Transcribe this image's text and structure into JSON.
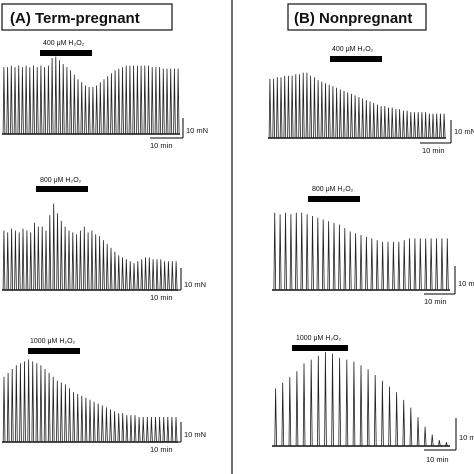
{
  "figure": {
    "panels": [
      {
        "id": "A",
        "title": "(A) Term-pregnant",
        "traces": [
          {
            "treatment": "400 μM H₂O₂",
            "scale_force": "10 mN",
            "scale_time": "10 min"
          },
          {
            "treatment": "800 μM H₂O₂",
            "scale_force": "10 mN",
            "scale_time": "10 min"
          },
          {
            "treatment": "1000 μM H₂O₂",
            "scale_force": "10 mN",
            "scale_time": "10 min"
          }
        ]
      },
      {
        "id": "B",
        "title": "(B) Nonpregnant",
        "traces": [
          {
            "treatment": "400 μM H₂O₂",
            "scale_force": "10 mN",
            "scale_time": "10 min"
          },
          {
            "treatment": "800 μM H₂O₂",
            "scale_force": "10 mN",
            "scale_time": "10 min"
          },
          {
            "treatment": "1000 μM H₂O₂",
            "scale_force": "10 mN",
            "scale_time": "10 min"
          }
        ]
      }
    ]
  },
  "chart_data": {
    "type": "line",
    "description_units": "contraction force traces (relative amplitude 0-1 of 10 mN scale multiples)",
    "series": [
      {
        "panel": "A",
        "treatment": "400 μM H₂O₂",
        "amplitudes": [
          0.88,
          0.88,
          0.9,
          0.88,
          0.9,
          0.88,
          0.9,
          0.88,
          0.9,
          0.88,
          0.9,
          0.88,
          0.9,
          1.0,
          1.02,
          0.97,
          0.92,
          0.88,
          0.84,
          0.78,
          0.72,
          0.68,
          0.64,
          0.62,
          0.62,
          0.64,
          0.68,
          0.72,
          0.76,
          0.8,
          0.84,
          0.86,
          0.88,
          0.9,
          0.9,
          0.9,
          0.9,
          0.9,
          0.9,
          0.9,
          0.88,
          0.88,
          0.88,
          0.86,
          0.86,
          0.86,
          0.86,
          0.86
        ]
      },
      {
        "panel": "A",
        "treatment": "800 μM H₂O₂",
        "amplitudes": [
          0.62,
          0.6,
          0.64,
          0.62,
          0.6,
          0.64,
          0.62,
          0.6,
          0.7,
          0.66,
          0.66,
          0.62,
          0.78,
          0.9,
          0.8,
          0.72,
          0.66,
          0.62,
          0.6,
          0.58,
          0.62,
          0.66,
          0.6,
          0.62,
          0.58,
          0.56,
          0.52,
          0.48,
          0.44,
          0.4,
          0.36,
          0.34,
          0.32,
          0.3,
          0.28,
          0.3,
          0.32,
          0.34,
          0.34,
          0.32,
          0.32,
          0.32,
          0.3,
          0.3,
          0.3,
          0.3
        ]
      },
      {
        "panel": "A",
        "treatment": "1000 μM H₂O₂",
        "amplitudes": [
          0.68,
          0.72,
          0.76,
          0.8,
          0.82,
          0.84,
          0.86,
          0.84,
          0.82,
          0.8,
          0.76,
          0.72,
          0.68,
          0.64,
          0.62,
          0.6,
          0.56,
          0.52,
          0.5,
          0.48,
          0.46,
          0.44,
          0.42,
          0.4,
          0.38,
          0.36,
          0.34,
          0.32,
          0.3,
          0.3,
          0.28,
          0.28,
          0.28,
          0.26,
          0.26,
          0.26,
          0.26,
          0.26,
          0.26,
          0.26,
          0.26,
          0.26,
          0.26
        ]
      },
      {
        "panel": "B",
        "treatment": "400 μM H₂O₂",
        "amplitudes": [
          0.78,
          0.78,
          0.8,
          0.8,
          0.82,
          0.82,
          0.82,
          0.84,
          0.84,
          0.86,
          0.86,
          0.82,
          0.8,
          0.76,
          0.74,
          0.72,
          0.7,
          0.68,
          0.66,
          0.64,
          0.62,
          0.6,
          0.58,
          0.56,
          0.54,
          0.52,
          0.5,
          0.48,
          0.46,
          0.44,
          0.42,
          0.42,
          0.4,
          0.4,
          0.38,
          0.38,
          0.36,
          0.36,
          0.34,
          0.34,
          0.34,
          0.34,
          0.34,
          0.32,
          0.32,
          0.32,
          0.32,
          0.32
        ]
      },
      {
        "panel": "B",
        "treatment": "800 μM H₂O₂",
        "amplitudes": [
          0.9,
          0.88,
          0.9,
          0.88,
          0.9,
          0.9,
          0.88,
          0.86,
          0.84,
          0.82,
          0.8,
          0.78,
          0.76,
          0.72,
          0.68,
          0.66,
          0.64,
          0.62,
          0.6,
          0.58,
          0.56,
          0.56,
          0.56,
          0.56,
          0.58,
          0.6,
          0.6,
          0.6,
          0.6,
          0.6,
          0.6,
          0.6,
          0.6
        ]
      },
      {
        "panel": "B",
        "treatment": "1000 μM H₂O₂",
        "amplitudes": [
          0.6,
          0.66,
          0.72,
          0.78,
          0.86,
          0.9,
          0.94,
          0.98,
          0.96,
          0.92,
          0.9,
          0.88,
          0.84,
          0.8,
          0.74,
          0.68,
          0.62,
          0.56,
          0.48,
          0.4,
          0.3,
          0.2,
          0.12,
          0.06,
          0.04
        ]
      }
    ]
  }
}
